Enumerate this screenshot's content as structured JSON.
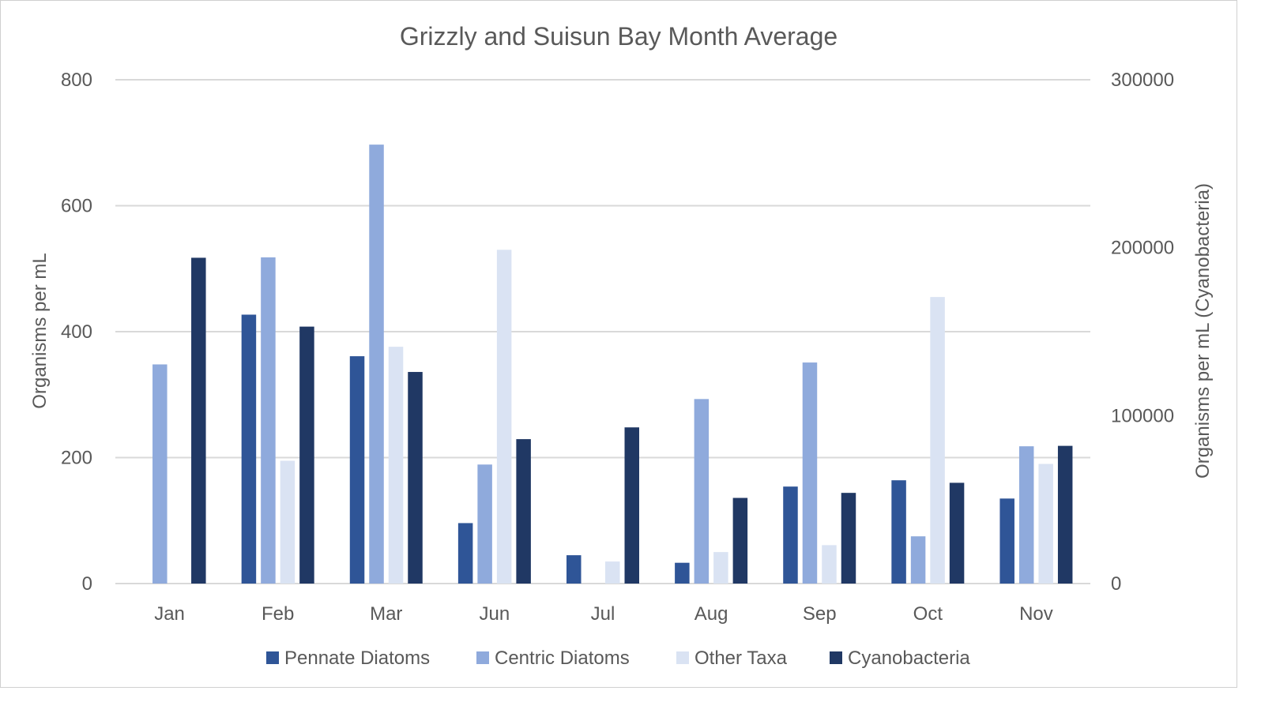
{
  "chart_data": {
    "type": "bar",
    "title": "Grizzly and Suisun Bay Month Average",
    "ylabel": "Organisms per mL",
    "ylabel_secondary": "Organisms per mL (Cyanobacteria)",
    "xlabel": "",
    "ylim": [
      0,
      800
    ],
    "ylim_secondary": [
      0,
      300000
    ],
    "yticks": [
      "0",
      "200",
      "400",
      "600",
      "800"
    ],
    "yticks_secondary": [
      "0",
      "100000",
      "200000",
      "300000"
    ],
    "grid": true,
    "legend_position": "bottom",
    "categories": [
      "Jan",
      "Feb",
      "Mar",
      "Jun",
      "Jul",
      "Aug",
      "Sep",
      "Oct",
      "Nov"
    ],
    "series": [
      {
        "name": "Pennate Diatoms",
        "axis": "primary",
        "color": "#2f5597",
        "values": [
          0,
          427,
          361,
          96,
          45,
          33,
          154,
          164,
          135
        ]
      },
      {
        "name": "Centric Diatoms",
        "axis": "primary",
        "color": "#8faadc",
        "values": [
          348,
          518,
          697,
          189,
          0,
          293,
          351,
          75,
          218
        ]
      },
      {
        "name": "Other Taxa",
        "axis": "primary",
        "color": "#dae3f3",
        "values": [
          0,
          195,
          376,
          530,
          35,
          50,
          61,
          455,
          190
        ]
      },
      {
        "name": "Cyanobacteria",
        "axis": "secondary",
        "color": "#203864",
        "values": [
          194000,
          153000,
          126000,
          86000,
          93000,
          51000,
          54000,
          60000,
          82000
        ]
      }
    ]
  }
}
